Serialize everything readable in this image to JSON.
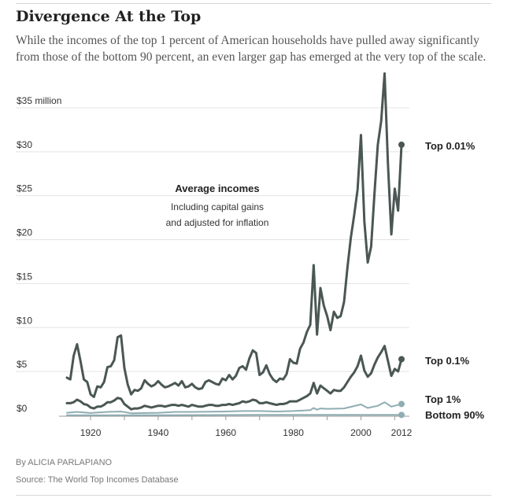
{
  "title": "Divergence At the Top",
  "subtitle": "While the incomes of the top 1 percent of American households have pulled away significantly from those of the bottom 90 percent, an even larger gap has emerged at the very top of the scale.",
  "byline": "By ALICIA PARLAPIANO",
  "source": "Source: The World Top Incomes Database",
  "colors": {
    "dark": "#4a5754",
    "light": "#8fadb3",
    "axis": "#999999",
    "text": "#333333"
  },
  "chart_data": {
    "type": "line",
    "title": "Average incomes",
    "annotation_lines": [
      "Including capital gains",
      "and adjusted for inflation"
    ],
    "xlim": [
      1913,
      2012
    ],
    "ylim": [
      0,
      35
    ],
    "x_ticks": [
      {
        "value": 1920,
        "label": "1920"
      },
      {
        "value": 1940,
        "label": "1940"
      },
      {
        "value": 1960,
        "label": "1960"
      },
      {
        "value": 1980,
        "label": "1980"
      },
      {
        "value": 2000,
        "label": "2000"
      },
      {
        "value": 2012,
        "label": "2012"
      }
    ],
    "y_ticks": [
      {
        "value": 35,
        "label": "$35 million"
      },
      {
        "value": 30,
        "label": "$30"
      },
      {
        "value": 25,
        "label": "$25"
      },
      {
        "value": 20,
        "label": "$20"
      },
      {
        "value": 15,
        "label": "$15"
      },
      {
        "value": 10,
        "label": "$10"
      },
      {
        "value": 5,
        "label": "$5"
      },
      {
        "value": 0,
        "label": "$0"
      }
    ],
    "series": [
      {
        "name": "Top 0.01%",
        "label_key": "top001",
        "color": "#4a5754",
        "width": 3,
        "points": [
          [
            1913,
            4.3
          ],
          [
            1914,
            4.1
          ],
          [
            1915,
            6.8
          ],
          [
            1916,
            8.1
          ],
          [
            1917,
            6.2
          ],
          [
            1918,
            4.1
          ],
          [
            1919,
            3.8
          ],
          [
            1920,
            2.4
          ],
          [
            1921,
            2.1
          ],
          [
            1922,
            3.3
          ],
          [
            1923,
            3.2
          ],
          [
            1924,
            3.8
          ],
          [
            1925,
            5.5
          ],
          [
            1926,
            5.6
          ],
          [
            1927,
            6.3
          ],
          [
            1928,
            8.9
          ],
          [
            1929,
            9.1
          ],
          [
            1930,
            5.4
          ],
          [
            1931,
            3.5
          ],
          [
            1932,
            2.4
          ],
          [
            1933,
            2.9
          ],
          [
            1934,
            2.8
          ],
          [
            1935,
            3.1
          ],
          [
            1936,
            4.0
          ],
          [
            1937,
            3.6
          ],
          [
            1938,
            3.3
          ],
          [
            1939,
            3.5
          ],
          [
            1940,
            3.9
          ],
          [
            1941,
            3.5
          ],
          [
            1942,
            3.2
          ],
          [
            1943,
            3.3
          ],
          [
            1944,
            3.5
          ],
          [
            1945,
            3.7
          ],
          [
            1946,
            3.4
          ],
          [
            1947,
            3.9
          ],
          [
            1948,
            3.2
          ],
          [
            1949,
            3.3
          ],
          [
            1950,
            3.6
          ],
          [
            1951,
            3.2
          ],
          [
            1952,
            3.0
          ],
          [
            1953,
            3.1
          ],
          [
            1954,
            3.8
          ],
          [
            1955,
            4.0
          ],
          [
            1956,
            3.8
          ],
          [
            1957,
            3.6
          ],
          [
            1958,
            3.5
          ],
          [
            1959,
            4.2
          ],
          [
            1960,
            4.0
          ],
          [
            1961,
            4.6
          ],
          [
            1962,
            4.1
          ],
          [
            1963,
            4.5
          ],
          [
            1964,
            5.4
          ],
          [
            1965,
            5.6
          ],
          [
            1966,
            5.2
          ],
          [
            1967,
            6.5
          ],
          [
            1968,
            7.4
          ],
          [
            1969,
            7.1
          ],
          [
            1970,
            4.6
          ],
          [
            1971,
            4.9
          ],
          [
            1972,
            5.7
          ],
          [
            1973,
            4.7
          ],
          [
            1974,
            4.1
          ],
          [
            1975,
            3.8
          ],
          [
            1976,
            4.2
          ],
          [
            1977,
            4.1
          ],
          [
            1978,
            4.7
          ],
          [
            1979,
            6.4
          ],
          [
            1980,
            6.0
          ],
          [
            1981,
            5.9
          ],
          [
            1982,
            7.6
          ],
          [
            1983,
            8.3
          ],
          [
            1984,
            9.5
          ],
          [
            1985,
            10.3
          ],
          [
            1986,
            17.1
          ],
          [
            1987,
            9.2
          ],
          [
            1988,
            14.5
          ],
          [
            1989,
            12.5
          ],
          [
            1990,
            11.3
          ],
          [
            1991,
            9.7
          ],
          [
            1992,
            11.8
          ],
          [
            1993,
            11.1
          ],
          [
            1994,
            11.3
          ],
          [
            1995,
            12.9
          ],
          [
            1996,
            16.8
          ],
          [
            1997,
            20.2
          ],
          [
            1998,
            22.8
          ],
          [
            1999,
            25.7
          ],
          [
            2000,
            31.9
          ],
          [
            2001,
            22.1
          ],
          [
            2002,
            17.4
          ],
          [
            2003,
            19.2
          ],
          [
            2004,
            25.3
          ],
          [
            2005,
            30.8
          ],
          [
            2006,
            33.5
          ],
          [
            2007,
            38.9
          ],
          [
            2008,
            28.6
          ],
          [
            2009,
            20.6
          ],
          [
            2010,
            25.8
          ],
          [
            2011,
            23.3
          ],
          [
            2012,
            30.8
          ]
        ]
      },
      {
        "name": "Top 0.1%",
        "label_key": "top01",
        "color": "#4a5754",
        "width": 3,
        "points": [
          [
            1913,
            1.4
          ],
          [
            1914,
            1.4
          ],
          [
            1915,
            1.5
          ],
          [
            1916,
            1.8
          ],
          [
            1917,
            1.6
          ],
          [
            1918,
            1.3
          ],
          [
            1919,
            1.2
          ],
          [
            1920,
            0.9
          ],
          [
            1921,
            0.8
          ],
          [
            1922,
            1.0
          ],
          [
            1923,
            1.0
          ],
          [
            1924,
            1.2
          ],
          [
            1925,
            1.5
          ],
          [
            1926,
            1.5
          ],
          [
            1927,
            1.7
          ],
          [
            1928,
            2.0
          ],
          [
            1929,
            1.9
          ],
          [
            1930,
            1.3
          ],
          [
            1931,
            1.0
          ],
          [
            1932,
            0.7
          ],
          [
            1933,
            0.8
          ],
          [
            1934,
            0.8
          ],
          [
            1935,
            0.9
          ],
          [
            1936,
            1.1
          ],
          [
            1937,
            1.0
          ],
          [
            1938,
            0.9
          ],
          [
            1939,
            1.0
          ],
          [
            1940,
            1.1
          ],
          [
            1941,
            1.1
          ],
          [
            1942,
            1.0
          ],
          [
            1943,
            1.1
          ],
          [
            1944,
            1.2
          ],
          [
            1945,
            1.2
          ],
          [
            1946,
            1.1
          ],
          [
            1947,
            1.2
          ],
          [
            1948,
            1.1
          ],
          [
            1949,
            1.0
          ],
          [
            1950,
            1.2
          ],
          [
            1951,
            1.1
          ],
          [
            1952,
            1.0
          ],
          [
            1953,
            1.0
          ],
          [
            1954,
            1.1
          ],
          [
            1955,
            1.2
          ],
          [
            1956,
            1.2
          ],
          [
            1957,
            1.1
          ],
          [
            1958,
            1.1
          ],
          [
            1959,
            1.2
          ],
          [
            1960,
            1.2
          ],
          [
            1961,
            1.3
          ],
          [
            1962,
            1.2
          ],
          [
            1963,
            1.3
          ],
          [
            1964,
            1.4
          ],
          [
            1965,
            1.6
          ],
          [
            1966,
            1.5
          ],
          [
            1967,
            1.6
          ],
          [
            1968,
            1.8
          ],
          [
            1969,
            1.7
          ],
          [
            1970,
            1.4
          ],
          [
            1971,
            1.4
          ],
          [
            1972,
            1.5
          ],
          [
            1973,
            1.4
          ],
          [
            1974,
            1.3
          ],
          [
            1975,
            1.2
          ],
          [
            1976,
            1.3
          ],
          [
            1977,
            1.3
          ],
          [
            1978,
            1.4
          ],
          [
            1979,
            1.6
          ],
          [
            1980,
            1.6
          ],
          [
            1981,
            1.6
          ],
          [
            1982,
            1.8
          ],
          [
            1983,
            2.0
          ],
          [
            1984,
            2.2
          ],
          [
            1985,
            2.5
          ],
          [
            1986,
            3.7
          ],
          [
            1987,
            2.5
          ],
          [
            1988,
            3.4
          ],
          [
            1989,
            3.1
          ],
          [
            1990,
            2.8
          ],
          [
            1991,
            2.5
          ],
          [
            1992,
            2.9
          ],
          [
            1993,
            2.8
          ],
          [
            1994,
            2.8
          ],
          [
            1995,
            3.2
          ],
          [
            1996,
            3.8
          ],
          [
            1997,
            4.4
          ],
          [
            1998,
            4.9
          ],
          [
            1999,
            5.6
          ],
          [
            2000,
            6.8
          ],
          [
            2001,
            5.1
          ],
          [
            2002,
            4.4
          ],
          [
            2003,
            4.8
          ],
          [
            2004,
            5.8
          ],
          [
            2005,
            6.6
          ],
          [
            2006,
            7.2
          ],
          [
            2007,
            7.9
          ],
          [
            2008,
            6.2
          ],
          [
            2009,
            4.5
          ],
          [
            2010,
            5.3
          ],
          [
            2011,
            5.0
          ],
          [
            2012,
            6.4
          ]
        ]
      },
      {
        "name": "Top 1%",
        "label_key": "top1",
        "color": "#8fadb3",
        "width": 2,
        "points": [
          [
            1913,
            0.3
          ],
          [
            1916,
            0.4
          ],
          [
            1920,
            0.28
          ],
          [
            1925,
            0.4
          ],
          [
            1929,
            0.45
          ],
          [
            1932,
            0.25
          ],
          [
            1940,
            0.3
          ],
          [
            1945,
            0.4
          ],
          [
            1950,
            0.4
          ],
          [
            1960,
            0.45
          ],
          [
            1965,
            0.5
          ],
          [
            1970,
            0.5
          ],
          [
            1975,
            0.45
          ],
          [
            1980,
            0.5
          ],
          [
            1985,
            0.6
          ],
          [
            1986,
            0.85
          ],
          [
            1987,
            0.65
          ],
          [
            1988,
            0.8
          ],
          [
            1990,
            0.75
          ],
          [
            1995,
            0.8
          ],
          [
            2000,
            1.25
          ],
          [
            2002,
            0.85
          ],
          [
            2005,
            1.1
          ],
          [
            2007,
            1.5
          ],
          [
            2009,
            1.0
          ],
          [
            2010,
            1.1
          ],
          [
            2012,
            1.3
          ]
        ]
      },
      {
        "name": "Bottom 90%",
        "label_key": "bottom90",
        "color": "#8fadb3",
        "width": 2,
        "points": [
          [
            1913,
            0.02
          ],
          [
            1930,
            0.03
          ],
          [
            1945,
            0.04
          ],
          [
            1970,
            0.06
          ],
          [
            2000,
            0.07
          ],
          [
            2012,
            0.06
          ]
        ]
      }
    ],
    "end_labels": {
      "top001": "Top 0.01%",
      "top01": "Top 0.1%",
      "top1": "Top 1%",
      "bottom90": "Bottom 90%"
    }
  }
}
